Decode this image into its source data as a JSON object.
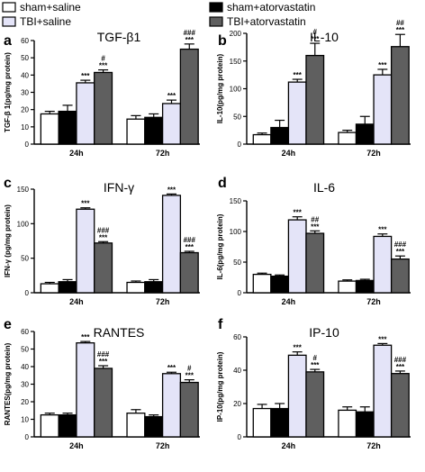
{
  "legend": [
    {
      "name": "sham+saline",
      "color": "#ffffff"
    },
    {
      "name": "sham+atorvastatin",
      "color": "#000000"
    },
    {
      "name": "TBI+saline",
      "color": "#e4e4f8"
    },
    {
      "name": "TBI+atorvastatin",
      "color": "#5f5f5f"
    }
  ],
  "chart_data": [
    {
      "type": "bar",
      "letter": "a",
      "title": "TGF-β1",
      "ylabel": "TGF-β 1(pg/mg protein)",
      "categories": [
        "24h",
        "72h"
      ],
      "ylim": [
        0,
        60
      ],
      "yticks": [
        0,
        10,
        20,
        30,
        40,
        50,
        60
      ],
      "series": [
        {
          "name": "sham+saline",
          "values": [
            17.5,
            14.5
          ],
          "errors": [
            1.5,
            2.0
          ],
          "marks": [
            "",
            ""
          ]
        },
        {
          "name": "sham+atorvastatin",
          "values": [
            19,
            15.5
          ],
          "errors": [
            3.5,
            2.0
          ],
          "marks": [
            "",
            ""
          ]
        },
        {
          "name": "TBI+saline",
          "values": [
            35.5,
            23.5
          ],
          "errors": [
            1.5,
            2.0
          ],
          "marks": [
            "***",
            "***"
          ]
        },
        {
          "name": "TBI+atorvastatin",
          "values": [
            41.5,
            55
          ],
          "errors": [
            1.5,
            3.0
          ],
          "marks": [
            "#\n***",
            "###\n***"
          ]
        }
      ]
    },
    {
      "type": "bar",
      "letter": "b",
      "title": "IL-10",
      "ylabel": "IL-10(pg/mg protein)",
      "categories": [
        "24h",
        "72h"
      ],
      "ylim": [
        0,
        200
      ],
      "yticks": [
        0,
        50,
        100,
        150,
        200
      ],
      "series": [
        {
          "name": "sham+saline",
          "values": [
            17,
            21
          ],
          "errors": [
            3,
            4
          ],
          "marks": [
            "",
            ""
          ]
        },
        {
          "name": "sham+atorvastatin",
          "values": [
            30,
            36
          ],
          "errors": [
            13,
            14
          ],
          "marks": [
            "",
            ""
          ]
        },
        {
          "name": "TBI+saline",
          "values": [
            112,
            125
          ],
          "errors": [
            5,
            10
          ],
          "marks": [
            "***",
            "***"
          ]
        },
        {
          "name": "TBI+atorvastatin",
          "values": [
            160,
            176
          ],
          "errors": [
            22,
            22
          ],
          "marks": [
            "#\n***",
            "##\n***"
          ]
        }
      ]
    },
    {
      "type": "bar",
      "letter": "c",
      "title": "IFN-γ",
      "ylabel": "IFN-γ (pg/mg protein)",
      "categories": [
        "24h",
        "72h"
      ],
      "ylim": [
        0,
        150
      ],
      "yticks": [
        0,
        50,
        100,
        150
      ],
      "series": [
        {
          "name": "sham+saline",
          "values": [
            13,
            15
          ],
          "errors": [
            2,
            2
          ],
          "marks": [
            "",
            ""
          ]
        },
        {
          "name": "sham+atorvastatin",
          "values": [
            16,
            16
          ],
          "errors": [
            3,
            3
          ],
          "marks": [
            "",
            ""
          ]
        },
        {
          "name": "TBI+saline",
          "values": [
            121,
            141
          ],
          "errors": [
            2,
            2
          ],
          "marks": [
            "***",
            "***"
          ]
        },
        {
          "name": "TBI+atorvastatin",
          "values": [
            72,
            58
          ],
          "errors": [
            2,
            2
          ],
          "marks": [
            "###\n***",
            "###\n***"
          ]
        }
      ]
    },
    {
      "type": "bar",
      "letter": "d",
      "title": "IL-6",
      "ylabel": "IL-6(pg/mg protein)",
      "categories": [
        "24h",
        "72h"
      ],
      "ylim": [
        0,
        150
      ],
      "yticks": [
        0,
        50,
        100,
        150
      ],
      "series": [
        {
          "name": "sham+saline",
          "values": [
            30,
            19
          ],
          "errors": [
            2,
            2
          ],
          "marks": [
            "",
            ""
          ]
        },
        {
          "name": "sham+atorvastatin",
          "values": [
            27,
            20
          ],
          "errors": [
            2,
            2
          ],
          "marks": [
            "",
            ""
          ]
        },
        {
          "name": "TBI+saline",
          "values": [
            119,
            92
          ],
          "errors": [
            5,
            4
          ],
          "marks": [
            "***",
            "***"
          ]
        },
        {
          "name": "TBI+atorvastatin",
          "values": [
            97,
            55
          ],
          "errors": [
            4,
            5
          ],
          "marks": [
            "##\n***",
            "###\n***"
          ]
        }
      ]
    },
    {
      "type": "bar",
      "letter": "e",
      "title": "RANTES",
      "ylabel": "RANTES(pg/mg protein)",
      "categories": [
        "24h",
        "72h"
      ],
      "ylim": [
        0,
        60
      ],
      "yticks": [
        0,
        10,
        20,
        30,
        40,
        50,
        60
      ],
      "series": [
        {
          "name": "sham+saline",
          "values": [
            12.5,
            13.5
          ],
          "errors": [
            1,
            2
          ],
          "marks": [
            "",
            ""
          ]
        },
        {
          "name": "sham+atorvastatin",
          "values": [
            12.5,
            11.5
          ],
          "errors": [
            1,
            1
          ],
          "marks": [
            "",
            ""
          ]
        },
        {
          "name": "TBI+saline",
          "values": [
            53.5,
            36
          ],
          "errors": [
            0.8,
            0.8
          ],
          "marks": [
            "***",
            "***"
          ]
        },
        {
          "name": "TBI+atorvastatin",
          "values": [
            39,
            31
          ],
          "errors": [
            1.5,
            1.5
          ],
          "marks": [
            "###\n***",
            "#\n***"
          ]
        }
      ]
    },
    {
      "type": "bar",
      "letter": "f",
      "title": "IP-10",
      "ylabel": "IP-10(pg/mg protein)",
      "categories": [
        "24h",
        "72h"
      ],
      "ylim": [
        0,
        60
      ],
      "yticks": [
        0,
        20,
        40,
        60
      ],
      "series": [
        {
          "name": "sham+saline",
          "values": [
            17,
            16
          ],
          "errors": [
            2.5,
            2
          ],
          "marks": [
            "",
            ""
          ]
        },
        {
          "name": "sham+atorvastatin",
          "values": [
            17,
            15
          ],
          "errors": [
            3,
            3
          ],
          "marks": [
            "",
            ""
          ]
        },
        {
          "name": "TBI+saline",
          "values": [
            49,
            55
          ],
          "errors": [
            2,
            1
          ],
          "marks": [
            "***",
            "***"
          ]
        },
        {
          "name": "TBI+atorvastatin",
          "values": [
            39,
            38
          ],
          "errors": [
            1.5,
            1.5
          ],
          "marks": [
            "#\n***",
            "###\n***"
          ]
        }
      ]
    }
  ]
}
